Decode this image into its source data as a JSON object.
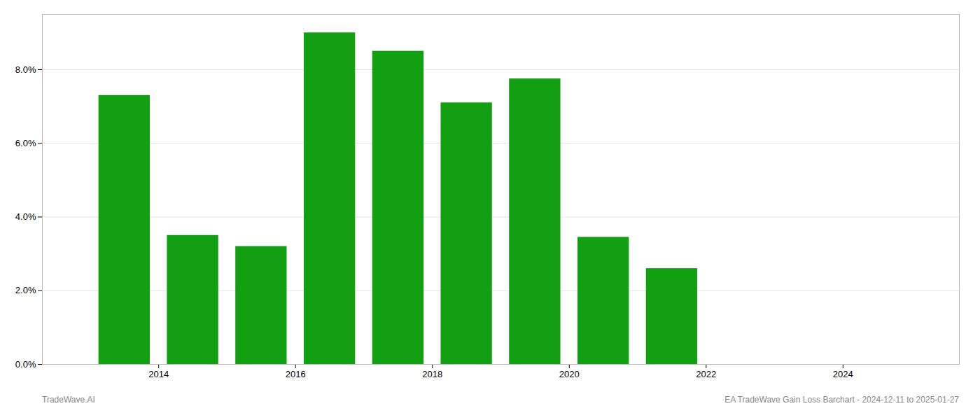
{
  "chart_data": {
    "type": "bar",
    "x": [
      2013,
      2014,
      2015,
      2016,
      2017,
      2018,
      2019,
      2020,
      2021
    ],
    "values": [
      0.073,
      0.035,
      0.032,
      0.09,
      0.085,
      0.071,
      0.0775,
      0.0345,
      0.026
    ],
    "color": "#12a012",
    "xlim": [
      2012.3,
      2025.7
    ],
    "xticks": [
      2014,
      2016,
      2018,
      2020,
      2022,
      2024
    ],
    "ylim": [
      0.0,
      0.095
    ],
    "yticks": [
      {
        "value": 0.0,
        "label": "0.0%"
      },
      {
        "value": 0.02,
        "label": "2.0%"
      },
      {
        "value": 0.04,
        "label": "4.0%"
      },
      {
        "value": 0.06,
        "label": "6.0%"
      },
      {
        "value": 0.08,
        "label": "8.0%"
      }
    ],
    "grid": true,
    "annotations": [
      "TradeWave.AI",
      "EA TradeWave Gain Loss Barchart - 2024-12-11 to 2025-01-27"
    ]
  }
}
